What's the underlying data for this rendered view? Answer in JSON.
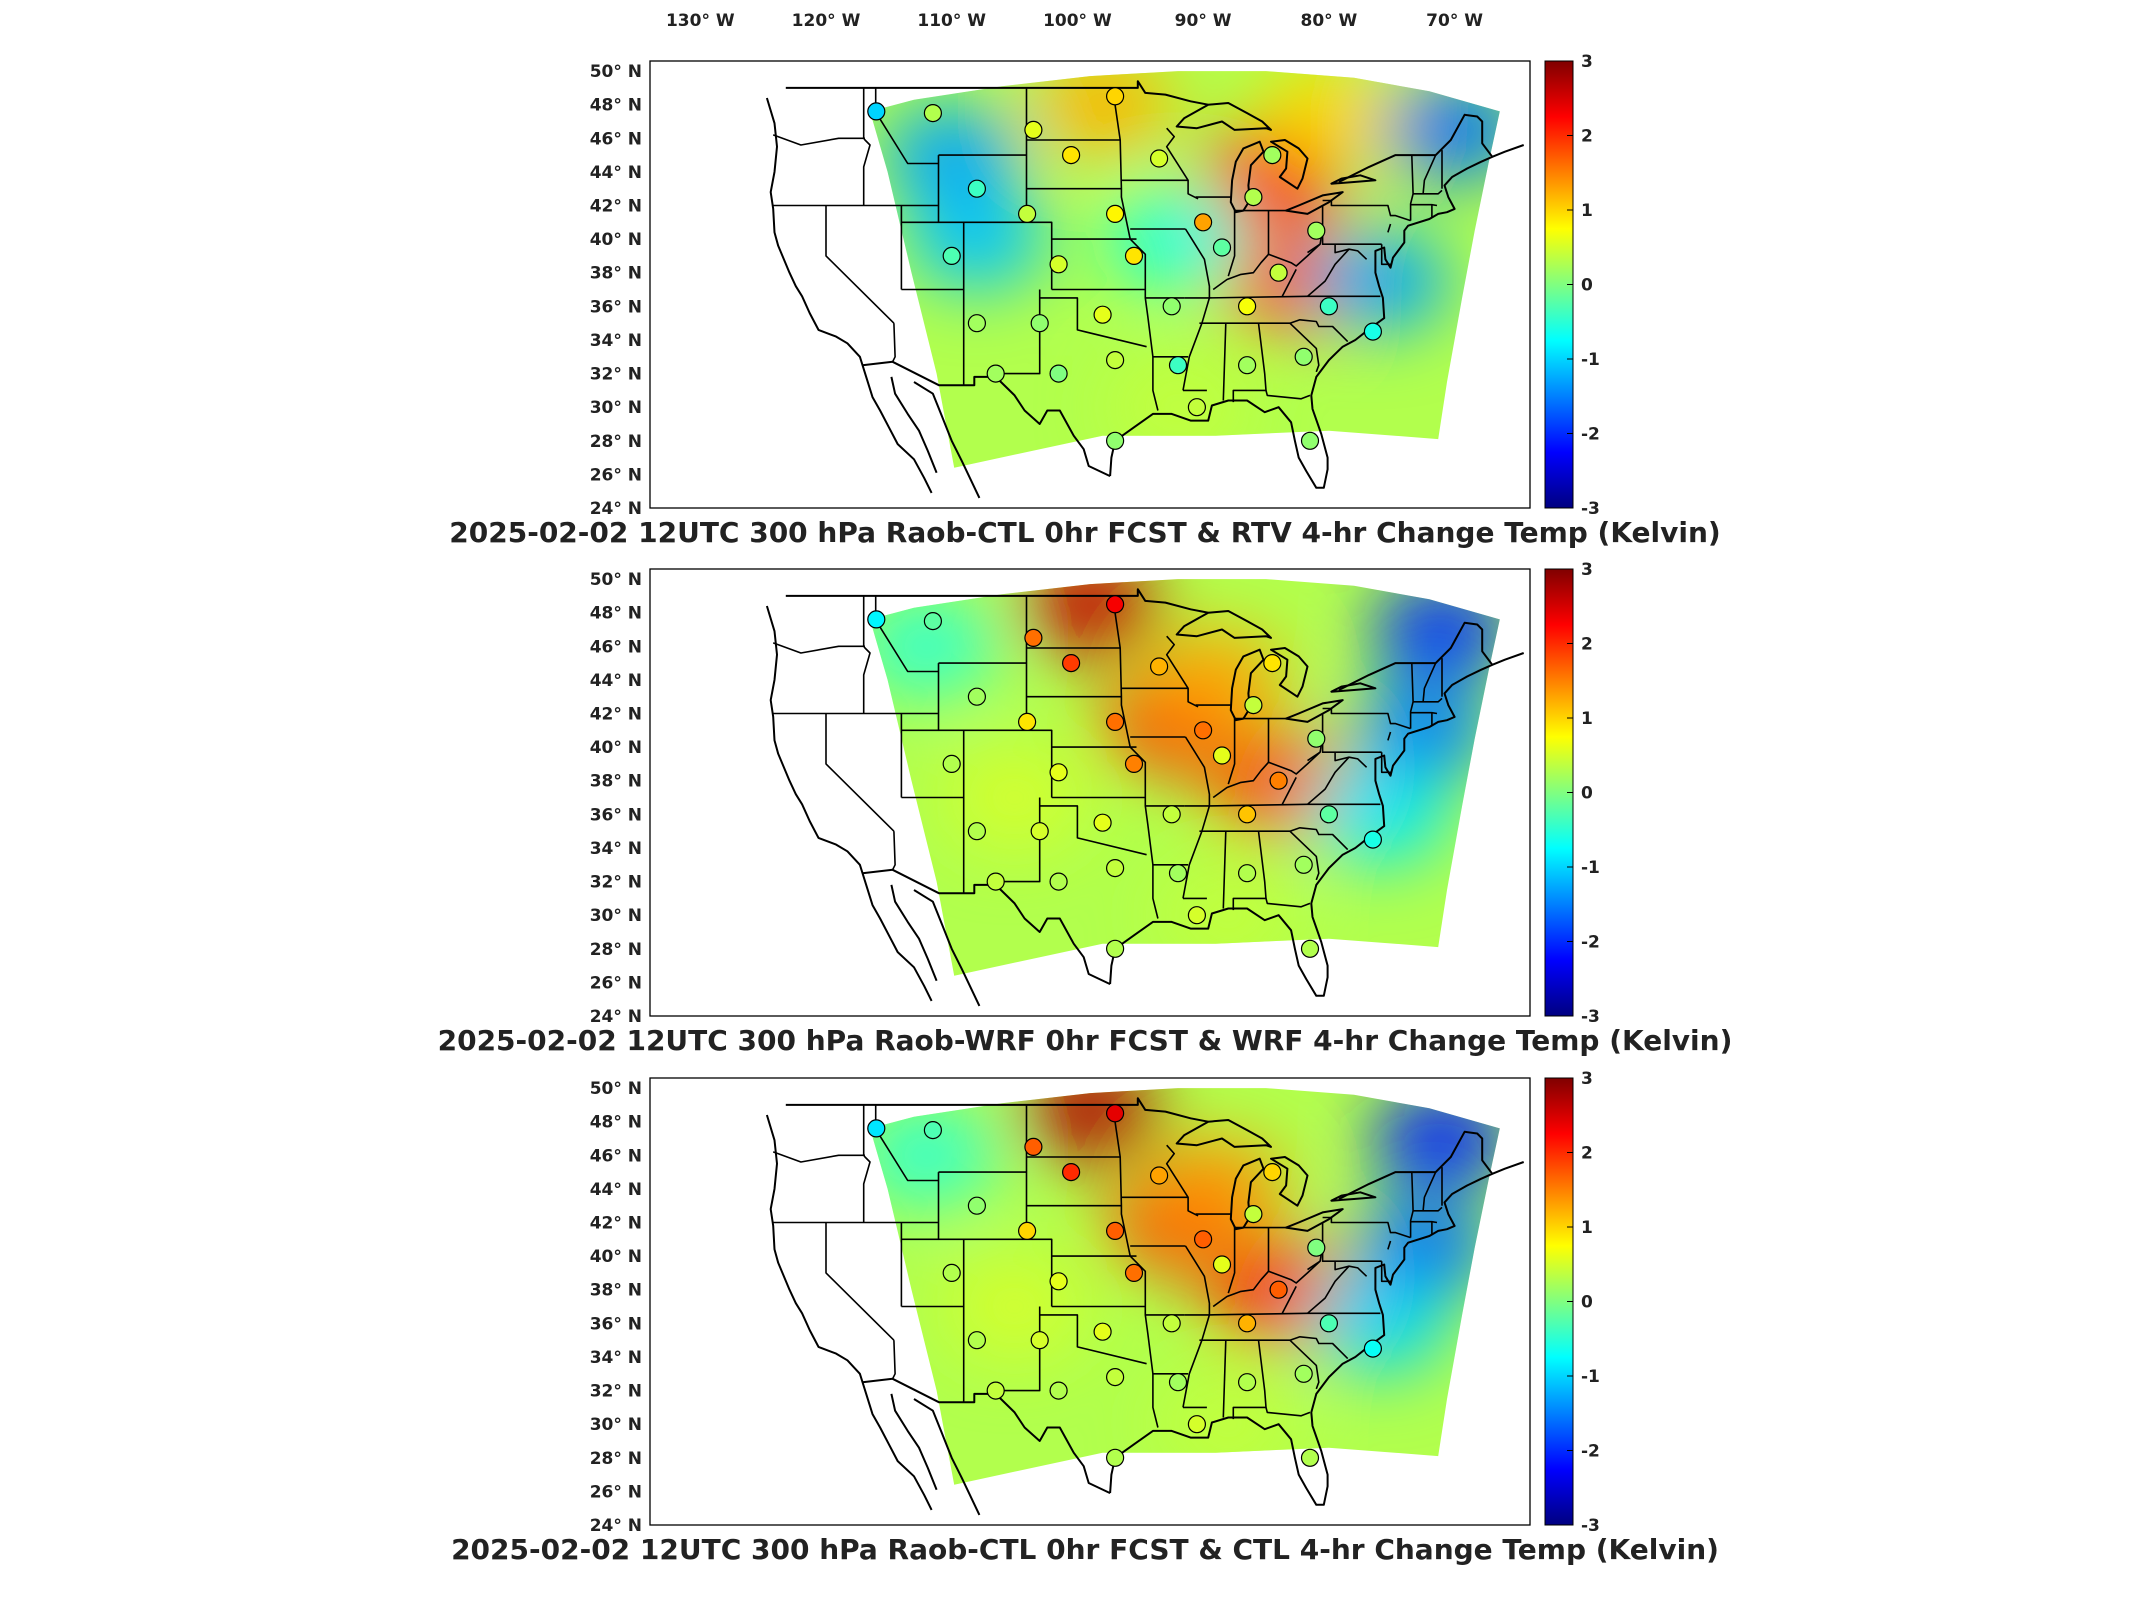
{
  "chart_data": [
    {
      "type": "heatmap",
      "title": "2025-02-02 12UTC 300 hPa Raob-CTL 0hr FCST & RTV 4-hr Change Temp (Kelvin)",
      "colorbar": {
        "range": [
          -3,
          3
        ],
        "ticks": [
          "3",
          "2",
          "1",
          "0",
          "-1",
          "-2",
          "-3"
        ]
      },
      "lon_ticks": [
        "130° W",
        "120° W",
        "110° W",
        "100° W",
        "90° W",
        "80° W",
        "70° W"
      ],
      "lat_ticks": [
        "50° N",
        "48° N",
        "46° N",
        "44° N",
        "42° N",
        "40° N",
        "38° N",
        "36° N",
        "34° N",
        "32° N",
        "30° N",
        "28° N",
        "26° N",
        "24° N"
      ],
      "field": [
        {
          "lon": -84.5,
          "lat": 43.5,
          "value": 2.2
        },
        {
          "lon": -83.0,
          "lat": 37.5,
          "value": 1.8
        },
        {
          "lon": -98.0,
          "lat": 48.0,
          "value": 1.2
        },
        {
          "lon": -80.0,
          "lat": 47.5,
          "value": 1.0
        },
        {
          "lon": -76.0,
          "lat": 37.5,
          "value": -1.3
        },
        {
          "lon": -110.0,
          "lat": 45.0,
          "value": -1.3
        },
        {
          "lon": -108.0,
          "lat": 40.0,
          "value": -1.1
        },
        {
          "lon": -92.0,
          "lat": 40.0,
          "value": -0.6
        },
        {
          "lon": -70.0,
          "lat": 46.5,
          "value": -1.6
        },
        {
          "lon": -92.0,
          "lat": 30.0,
          "value": 0.4
        }
      ],
      "stations": [
        {
          "lon": -116.0,
          "lat": 47.6,
          "value": -1.0
        },
        {
          "lon": -111.5,
          "lat": 47.5,
          "value": 0.3
        },
        {
          "lon": -103.5,
          "lat": 46.5,
          "value": 0.6
        },
        {
          "lon": -97.0,
          "lat": 48.5,
          "value": 1.0
        },
        {
          "lon": -100.5,
          "lat": 45.0,
          "value": 0.9
        },
        {
          "lon": -93.5,
          "lat": 44.8,
          "value": 0.5
        },
        {
          "lon": -84.5,
          "lat": 45.0,
          "value": 0.2
        },
        {
          "lon": -108.0,
          "lat": 43.0,
          "value": -0.4
        },
        {
          "lon": -104.0,
          "lat": 41.5,
          "value": 0.4
        },
        {
          "lon": -97.0,
          "lat": 41.5,
          "value": 0.8
        },
        {
          "lon": -90.0,
          "lat": 41.0,
          "value": 1.3
        },
        {
          "lon": -86.0,
          "lat": 42.5,
          "value": 0.3
        },
        {
          "lon": -81.0,
          "lat": 40.5,
          "value": 0.2
        },
        {
          "lon": -110.0,
          "lat": 39.0,
          "value": -0.3
        },
        {
          "lon": -101.5,
          "lat": 38.5,
          "value": 0.5
        },
        {
          "lon": -95.5,
          "lat": 39.0,
          "value": 0.9
        },
        {
          "lon": -88.5,
          "lat": 39.5,
          "value": -0.2
        },
        {
          "lon": -84.0,
          "lat": 38.0,
          "value": 0.4
        },
        {
          "lon": -108.0,
          "lat": 35.0,
          "value": 0.2
        },
        {
          "lon": -103.0,
          "lat": 35.0,
          "value": 0.1
        },
        {
          "lon": -98.0,
          "lat": 35.5,
          "value": 0.6
        },
        {
          "lon": -92.5,
          "lat": 36.0,
          "value": 0.1
        },
        {
          "lon": -86.5,
          "lat": 36.0,
          "value": 0.7
        },
        {
          "lon": -80.0,
          "lat": 36.0,
          "value": -0.4
        },
        {
          "lon": -106.5,
          "lat": 32.0,
          "value": 0.2
        },
        {
          "lon": -101.5,
          "lat": 32.0,
          "value": 0.0
        },
        {
          "lon": -97.0,
          "lat": 32.8,
          "value": 0.4
        },
        {
          "lon": -92.0,
          "lat": 32.5,
          "value": -0.4
        },
        {
          "lon": -86.5,
          "lat": 32.5,
          "value": 0.2
        },
        {
          "lon": -82.0,
          "lat": 33.0,
          "value": 0.1
        },
        {
          "lon": -76.5,
          "lat": 34.5,
          "value": -0.6
        },
        {
          "lon": -97.0,
          "lat": 28.0,
          "value": 0.1
        },
        {
          "lon": -90.5,
          "lat": 30.0,
          "value": 0.4
        },
        {
          "lon": -81.5,
          "lat": 28.0,
          "value": 0.1
        }
      ]
    },
    {
      "type": "heatmap",
      "title": "2025-02-02 12UTC 300 hPa Raob-WRF 0hr FCST & WRF 4-hr Change Temp (Kelvin)",
      "colorbar": {
        "range": [
          -3,
          3
        ],
        "ticks": [
          "3",
          "2",
          "1",
          "0",
          "-1",
          "-2",
          "-3"
        ]
      },
      "lon_ticks": [],
      "lat_ticks": [
        "50° N",
        "48° N",
        "46° N",
        "44° N",
        "42° N",
        "40° N",
        "38° N",
        "36° N",
        "34° N",
        "32° N",
        "30° N",
        "28° N",
        "26° N",
        "24° N"
      ],
      "field": [
        {
          "lon": -99.0,
          "lat": 48.5,
          "value": 2.6
        },
        {
          "lon": -92.5,
          "lat": 41.5,
          "value": 2.0
        },
        {
          "lon": -84.0,
          "lat": 37.8,
          "value": 1.8
        },
        {
          "lon": -89.0,
          "lat": 44.0,
          "value": 1.3
        },
        {
          "lon": -105.0,
          "lat": 37.0,
          "value": 0.5
        },
        {
          "lon": -71.0,
          "lat": 47.0,
          "value": -2.0
        },
        {
          "lon": -72.5,
          "lat": 41.0,
          "value": -1.5
        },
        {
          "lon": -76.0,
          "lat": 36.0,
          "value": -0.9
        },
        {
          "lon": -112.0,
          "lat": 46.0,
          "value": -0.5
        },
        {
          "lon": -88.0,
          "lat": 30.0,
          "value": 0.4
        }
      ],
      "stations": [
        {
          "lon": -116.0,
          "lat": 47.6,
          "value": -0.8
        },
        {
          "lon": -111.5,
          "lat": 47.5,
          "value": -0.2
        },
        {
          "lon": -103.5,
          "lat": 46.5,
          "value": 1.6
        },
        {
          "lon": -97.0,
          "lat": 48.5,
          "value": 2.3
        },
        {
          "lon": -100.5,
          "lat": 45.0,
          "value": 1.9
        },
        {
          "lon": -93.5,
          "lat": 44.8,
          "value": 1.2
        },
        {
          "lon": -84.5,
          "lat": 45.0,
          "value": 0.9
        },
        {
          "lon": -108.0,
          "lat": 43.0,
          "value": 0.2
        },
        {
          "lon": -104.0,
          "lat": 41.5,
          "value": 0.9
        },
        {
          "lon": -97.0,
          "lat": 41.5,
          "value": 1.6
        },
        {
          "lon": -90.0,
          "lat": 41.0,
          "value": 1.6
        },
        {
          "lon": -86.0,
          "lat": 42.5,
          "value": 0.4
        },
        {
          "lon": -81.0,
          "lat": 40.5,
          "value": 0.1
        },
        {
          "lon": -110.0,
          "lat": 39.0,
          "value": 0.3
        },
        {
          "lon": -101.5,
          "lat": 38.5,
          "value": 0.6
        },
        {
          "lon": -95.5,
          "lat": 39.0,
          "value": 1.5
        },
        {
          "lon": -88.5,
          "lat": 39.5,
          "value": 0.6
        },
        {
          "lon": -84.0,
          "lat": 38.0,
          "value": 1.5
        },
        {
          "lon": -108.0,
          "lat": 35.0,
          "value": 0.3
        },
        {
          "lon": -103.0,
          "lat": 35.0,
          "value": 0.5
        },
        {
          "lon": -98.0,
          "lat": 35.5,
          "value": 0.6
        },
        {
          "lon": -92.5,
          "lat": 36.0,
          "value": 0.4
        },
        {
          "lon": -86.5,
          "lat": 36.0,
          "value": 1.1
        },
        {
          "lon": -80.0,
          "lat": 36.0,
          "value": -0.2
        },
        {
          "lon": -106.5,
          "lat": 32.0,
          "value": 0.4
        },
        {
          "lon": -101.5,
          "lat": 32.0,
          "value": 0.3
        },
        {
          "lon": -97.0,
          "lat": 32.8,
          "value": 0.4
        },
        {
          "lon": -92.0,
          "lat": 32.5,
          "value": 0.2
        },
        {
          "lon": -86.5,
          "lat": 32.5,
          "value": 0.3
        },
        {
          "lon": -82.0,
          "lat": 33.0,
          "value": 0.2
        },
        {
          "lon": -76.5,
          "lat": 34.5,
          "value": -0.6
        },
        {
          "lon": -97.0,
          "lat": 28.0,
          "value": 0.3
        },
        {
          "lon": -90.5,
          "lat": 30.0,
          "value": 0.5
        },
        {
          "lon": -81.5,
          "lat": 28.0,
          "value": 0.3
        }
      ]
    },
    {
      "type": "heatmap",
      "title": "2025-02-02 12UTC 300 hPa Raob-CTL 0hr FCST & CTL 4-hr Change Temp (Kelvin)",
      "colorbar": {
        "range": [
          -3,
          3
        ],
        "ticks": [
          "3",
          "2",
          "1",
          "0",
          "-1",
          "-2",
          "-3"
        ]
      },
      "lon_ticks": [],
      "lat_ticks": [
        "50° N",
        "48° N",
        "46° N",
        "44° N",
        "42° N",
        "40° N",
        "38° N",
        "36° N",
        "34° N",
        "32° N",
        "30° N",
        "28° N",
        "26° N",
        "24° N"
      ],
      "field": [
        {
          "lon": -99.0,
          "lat": 48.7,
          "value": 2.7
        },
        {
          "lon": -92.0,
          "lat": 42.0,
          "value": 2.0
        },
        {
          "lon": -84.0,
          "lat": 37.8,
          "value": 2.0
        },
        {
          "lon": -89.0,
          "lat": 44.0,
          "value": 1.4
        },
        {
          "lon": -105.0,
          "lat": 37.0,
          "value": 0.5
        },
        {
          "lon": -71.0,
          "lat": 47.0,
          "value": -2.1
        },
        {
          "lon": -72.5,
          "lat": 40.5,
          "value": -1.6
        },
        {
          "lon": -76.0,
          "lat": 36.0,
          "value": -1.0
        },
        {
          "lon": -112.0,
          "lat": 46.0,
          "value": -0.5
        },
        {
          "lon": -88.0,
          "lat": 30.0,
          "value": 0.4
        }
      ],
      "stations": [
        {
          "lon": -116.0,
          "lat": 47.6,
          "value": -0.9
        },
        {
          "lon": -111.5,
          "lat": 47.5,
          "value": -0.3
        },
        {
          "lon": -103.5,
          "lat": 46.5,
          "value": 1.7
        },
        {
          "lon": -97.0,
          "lat": 48.5,
          "value": 2.4
        },
        {
          "lon": -100.5,
          "lat": 45.0,
          "value": 2.0
        },
        {
          "lon": -93.5,
          "lat": 44.8,
          "value": 1.3
        },
        {
          "lon": -84.5,
          "lat": 45.0,
          "value": 1.0
        },
        {
          "lon": -108.0,
          "lat": 43.0,
          "value": 0.1
        },
        {
          "lon": -104.0,
          "lat": 41.5,
          "value": 1.0
        },
        {
          "lon": -97.0,
          "lat": 41.5,
          "value": 1.7
        },
        {
          "lon": -90.0,
          "lat": 41.0,
          "value": 1.7
        },
        {
          "lon": -86.0,
          "lat": 42.5,
          "value": 0.4
        },
        {
          "lon": -81.0,
          "lat": 40.5,
          "value": 0.0
        },
        {
          "lon": -110.0,
          "lat": 39.0,
          "value": 0.3
        },
        {
          "lon": -101.5,
          "lat": 38.5,
          "value": 0.6
        },
        {
          "lon": -95.5,
          "lat": 39.0,
          "value": 1.6
        },
        {
          "lon": -88.5,
          "lat": 39.5,
          "value": 0.6
        },
        {
          "lon": -84.0,
          "lat": 38.0,
          "value": 1.7
        },
        {
          "lon": -108.0,
          "lat": 35.0,
          "value": 0.3
        },
        {
          "lon": -103.0,
          "lat": 35.0,
          "value": 0.5
        },
        {
          "lon": -98.0,
          "lat": 35.5,
          "value": 0.6
        },
        {
          "lon": -92.5,
          "lat": 36.0,
          "value": 0.4
        },
        {
          "lon": -86.5,
          "lat": 36.0,
          "value": 1.2
        },
        {
          "lon": -80.0,
          "lat": 36.0,
          "value": -0.3
        },
        {
          "lon": -106.5,
          "lat": 32.0,
          "value": 0.4
        },
        {
          "lon": -101.5,
          "lat": 32.0,
          "value": 0.3
        },
        {
          "lon": -97.0,
          "lat": 32.8,
          "value": 0.4
        },
        {
          "lon": -92.0,
          "lat": 32.5,
          "value": 0.2
        },
        {
          "lon": -86.5,
          "lat": 32.5,
          "value": 0.3
        },
        {
          "lon": -82.0,
          "lat": 33.0,
          "value": 0.2
        },
        {
          "lon": -76.5,
          "lat": 34.5,
          "value": -0.7
        },
        {
          "lon": -97.0,
          "lat": 28.0,
          "value": 0.3
        },
        {
          "lon": -90.5,
          "lat": 30.0,
          "value": 0.5
        },
        {
          "lon": -81.5,
          "lat": 28.0,
          "value": 0.3
        }
      ]
    }
  ],
  "colors": {
    "outline": "#000000",
    "frame": "#000000",
    "text": "#222222",
    "colormap": "jet"
  }
}
